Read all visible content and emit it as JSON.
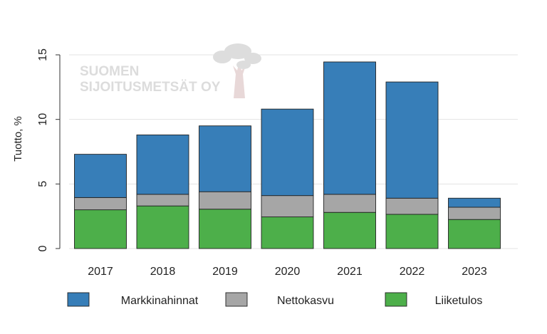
{
  "watermark": {
    "line1": "SUOMEN",
    "line2": "SIJOITUSMETSÄT OY",
    "logo_icon": "tree-icon"
  },
  "chart_data": {
    "type": "bar",
    "stacked": true,
    "categories": [
      "2017",
      "2018",
      "2019",
      "2020",
      "2021",
      "2022",
      "2023"
    ],
    "series": [
      {
        "name": "Liiketulos",
        "color": "#4daf4a",
        "values": [
          3.0,
          3.3,
          3.05,
          2.45,
          2.8,
          2.65,
          2.25
        ]
      },
      {
        "name": "Nettokasvu",
        "color": "#a6a6a6",
        "values": [
          0.95,
          0.9,
          1.35,
          1.65,
          1.4,
          1.25,
          0.95
        ]
      },
      {
        "name": "Markkinahinnat",
        "color": "#377eb8",
        "values": [
          3.35,
          4.6,
          5.1,
          6.7,
          10.25,
          9.0,
          0.7
        ]
      }
    ],
    "legend_order": [
      "Markkinahinnat",
      "Nettokasvu",
      "Liiketulos"
    ],
    "ylabel": "Tuotto, %",
    "xlabel": "",
    "ylim": [
      0,
      15
    ],
    "yticks": [
      0,
      5,
      10,
      15
    ],
    "grid": true,
    "legend_position": "bottom"
  }
}
